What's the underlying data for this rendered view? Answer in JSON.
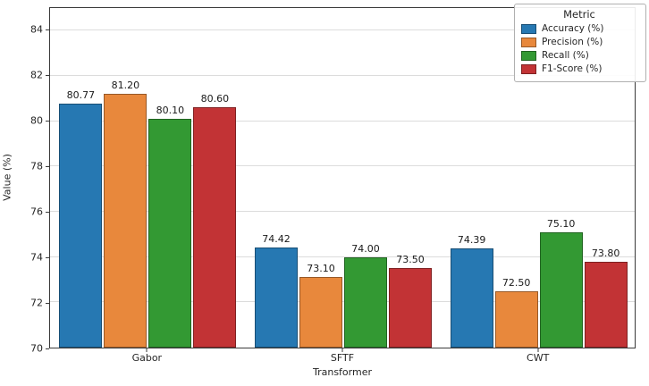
{
  "chart_data": {
    "type": "bar",
    "title": "",
    "xlabel": "Transformer",
    "ylabel": "Value (%)",
    "ylim": [
      70,
      85
    ],
    "yticks": [
      70,
      72,
      74,
      76,
      78,
      80,
      82,
      84
    ],
    "grid": "horizontal",
    "legend_title": "Metric",
    "legend_position": "top-right",
    "categories": [
      "Gabor",
      "SFTF",
      "CWT"
    ],
    "series": [
      {
        "name": "Accuracy (%)",
        "color": "#2678b2",
        "values": [
          80.77,
          74.42,
          74.39
        ]
      },
      {
        "name": "Precision (%)",
        "color": "#e8883c",
        "values": [
          81.2,
          73.1,
          72.5
        ]
      },
      {
        "name": "Recall (%)",
        "color": "#339933",
        "values": [
          80.1,
          74.0,
          75.1
        ]
      },
      {
        "name": "F1-Score (%)",
        "color": "#c23335",
        "values": [
          80.6,
          73.5,
          73.8
        ]
      }
    ],
    "bar_label_format": "2dp"
  }
}
